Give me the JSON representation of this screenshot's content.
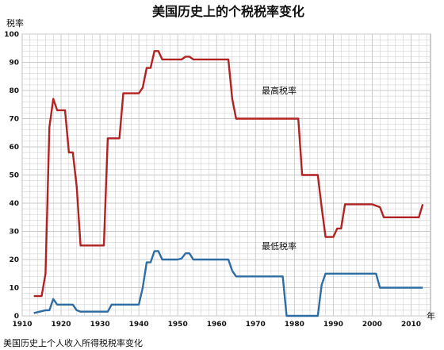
{
  "chart_data": {
    "type": "line",
    "title": "美国历史上的个税税率变化",
    "ylabel": "税率",
    "xlabel": "年",
    "caption": "美国历史上个人收入所得税税率变化",
    "xlim": [
      1910,
      2015
    ],
    "ylim": [
      0,
      100
    ],
    "x_ticks": [
      "1910",
      "1920",
      "1930",
      "1940",
      "1950",
      "1960",
      "1970",
      "1980",
      "1990",
      "2000",
      "2010"
    ],
    "y_ticks": [
      "0",
      "10",
      "20",
      "30",
      "40",
      "50",
      "60",
      "70",
      "80",
      "90",
      "100"
    ],
    "grid": true,
    "colors": {
      "top": "#b22222",
      "bottom": "#2e6da4",
      "grid": "#c8c8c8"
    },
    "series": [
      {
        "name": "最高税率",
        "points": [
          [
            1913,
            7
          ],
          [
            1915,
            7
          ],
          [
            1916,
            15
          ],
          [
            1917,
            67
          ],
          [
            1918,
            77
          ],
          [
            1919,
            73
          ],
          [
            1921,
            73
          ],
          [
            1922,
            58
          ],
          [
            1923,
            58
          ],
          [
            1924,
            46
          ],
          [
            1925,
            25
          ],
          [
            1931,
            25
          ],
          [
            1932,
            63
          ],
          [
            1935,
            63
          ],
          [
            1936,
            79
          ],
          [
            1940,
            79
          ],
          [
            1941,
            81
          ],
          [
            1942,
            88
          ],
          [
            1943,
            88
          ],
          [
            1944,
            94
          ],
          [
            1945,
            94
          ],
          [
            1946,
            91
          ],
          [
            1951,
            91
          ],
          [
            1952,
            92
          ],
          [
            1953,
            92
          ],
          [
            1954,
            91
          ],
          [
            1963,
            91
          ],
          [
            1964,
            77
          ],
          [
            1965,
            70
          ],
          [
            1981,
            70
          ],
          [
            1982,
            50
          ],
          [
            1986,
            50
          ],
          [
            1987,
            38.5
          ],
          [
            1988,
            28
          ],
          [
            1990,
            28
          ],
          [
            1991,
            31
          ],
          [
            1992,
            31
          ],
          [
            1993,
            39.6
          ],
          [
            2000,
            39.6
          ],
          [
            2001,
            39.1
          ],
          [
            2002,
            38.6
          ],
          [
            2003,
            35
          ],
          [
            2012,
            35
          ],
          [
            2013,
            39.6
          ]
        ]
      },
      {
        "name": "最低税率",
        "points": [
          [
            1913,
            1
          ],
          [
            1916,
            2
          ],
          [
            1917,
            2
          ],
          [
            1918,
            6
          ],
          [
            1919,
            4
          ],
          [
            1923,
            4
          ],
          [
            1924,
            2
          ],
          [
            1925,
            1.5
          ],
          [
            1932,
            1.5
          ],
          [
            1933,
            4
          ],
          [
            1940,
            4
          ],
          [
            1941,
            10
          ],
          [
            1942,
            19
          ],
          [
            1943,
            19
          ],
          [
            1944,
            23
          ],
          [
            1945,
            23
          ],
          [
            1946,
            20
          ],
          [
            1950,
            20
          ],
          [
            1951,
            20.4
          ],
          [
            1952,
            22.2
          ],
          [
            1953,
            22.2
          ],
          [
            1954,
            20
          ],
          [
            1963,
            20
          ],
          [
            1964,
            16
          ],
          [
            1965,
            14
          ],
          [
            1977,
            14
          ],
          [
            1978,
            0
          ],
          [
            1986,
            0
          ],
          [
            1987,
            11
          ],
          [
            1988,
            15
          ],
          [
            2000,
            15
          ],
          [
            2001,
            15
          ],
          [
            2002,
            10
          ],
          [
            2013,
            10
          ]
        ]
      }
    ]
  }
}
